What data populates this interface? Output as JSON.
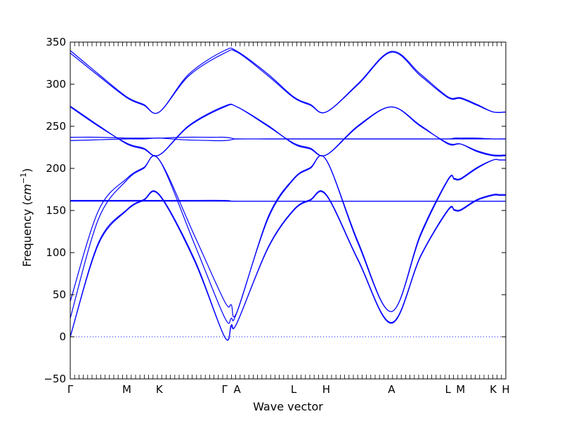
{
  "chart_data": {
    "type": "line",
    "xlabel": "Wave vector",
    "ylabel": {
      "text": "Frequency (",
      "unit_main": "cm",
      "unit_exp": "−1",
      "close": ")"
    },
    "ylim": [
      -50,
      350
    ],
    "yticks": [
      -50,
      0,
      50,
      100,
      150,
      200,
      250,
      300,
      350
    ],
    "ytick_labels": [
      "−50",
      "0",
      "50",
      "100",
      "150",
      "200",
      "250",
      "300",
      "350"
    ],
    "high_symmetry_points": [
      {
        "label": "Γ",
        "x": 0.0
      },
      {
        "label": "M",
        "x": 1.0
      },
      {
        "label": "K",
        "x": 1.577
      },
      {
        "label": "Γ",
        "x": 2.732
      },
      {
        "label": "A",
        "x": 2.955
      },
      {
        "label": "L",
        "x": 3.955
      },
      {
        "label": "H",
        "x": 4.532
      },
      {
        "label": "A",
        "x": 5.687
      },
      {
        "label": "L",
        "x": 6.687
      },
      {
        "label": "M",
        "x": 6.91
      },
      {
        "label": "K",
        "x": 7.487
      },
      {
        "label": "H",
        "x": 7.71
      }
    ],
    "zero_line": true,
    "line_color": "#0000ff",
    "zero_line_color": "#0000ff",
    "series": [
      {
        "x": [
          0,
          0.5,
          1.0,
          1.3,
          1.577,
          2.2,
          2.732,
          2.85,
          2.955,
          3.5,
          3.955,
          4.25,
          4.532,
          5.1,
          5.687,
          6.2,
          6.687,
          6.8,
          6.91,
          7.2,
          7.487,
          7.6,
          7.71
        ],
        "y": [
          0,
          110,
          150,
          162,
          168,
          90,
          0,
          12,
          17,
          105,
          150,
          162,
          168,
          90,
          16,
          95,
          150,
          150,
          150,
          162,
          168,
          168,
          168
        ]
      },
      {
        "x": [
          0,
          0.5,
          1.0,
          1.3,
          1.577,
          2.2,
          2.732,
          2.85,
          2.955,
          3.5,
          3.955,
          4.25,
          4.532,
          5.1,
          5.687,
          6.2,
          6.687,
          6.8,
          6.91,
          7.2,
          7.487,
          7.6,
          7.71
        ],
        "y": [
          0,
          112,
          151,
          163,
          169,
          92,
          0,
          14,
          17,
          106,
          151,
          163,
          169,
          91,
          17,
          96,
          151,
          151,
          151,
          163,
          169,
          169,
          169
        ]
      },
      {
        "x": [
          0,
          0.5,
          1.0,
          1.3,
          1.577,
          2.2,
          2.732,
          2.85,
          2.955,
          3.5,
          3.955,
          4.25,
          4.532,
          5.1,
          5.687,
          6.2,
          6.687,
          6.8,
          6.91,
          7.2,
          7.487,
          7.6,
          7.71
        ],
        "y": [
          22,
          140,
          186,
          200,
          210,
          110,
          23,
          22,
          30,
          140,
          187,
          200,
          210,
          110,
          30,
          120,
          186,
          187,
          187,
          200,
          210,
          210,
          210
        ]
      },
      {
        "x": [
          0,
          0.5,
          1.0,
          1.3,
          1.577,
          2.2,
          2.732,
          2.85,
          2.955,
          3.5,
          3.955,
          4.25,
          4.532,
          5.1,
          5.687,
          6.2,
          6.687,
          6.8,
          6.91,
          7.2,
          7.487,
          7.6,
          7.71
        ],
        "y": [
          42,
          150,
          188,
          201,
          210,
          120,
          42,
          38,
          30,
          142,
          188,
          201,
          210,
          112,
          30,
          122,
          187,
          188,
          188,
          201,
          210,
          210,
          210
        ]
      },
      {
        "x": [
          0,
          0.5,
          1.0,
          1.577,
          2.0,
          2.732,
          2.955,
          3.955,
          4.532,
          5.687,
          6.687,
          6.91,
          7.487,
          7.71
        ],
        "y": [
          161,
          161,
          161,
          161,
          161,
          161,
          161,
          161,
          161,
          161,
          161,
          161,
          161,
          161
        ]
      },
      {
        "x": [
          0,
          0.5,
          1.0,
          1.577,
          2.0,
          2.732,
          2.955,
          3.955,
          4.532,
          5.687,
          6.687,
          6.91,
          7.487,
          7.71
        ],
        "y": [
          162,
          162,
          162,
          162,
          162,
          162,
          161,
          161,
          161,
          161,
          161,
          161,
          161,
          161
        ]
      },
      {
        "x": [
          0,
          0.5,
          1.0,
          1.3,
          1.577,
          2.0,
          2.5,
          2.732,
          2.85,
          2.955,
          3.5,
          3.955,
          4.25,
          4.532,
          5.1,
          5.687,
          6.2,
          6.687,
          6.8,
          6.91,
          7.2,
          7.487,
          7.6,
          7.71
        ],
        "y": [
          237,
          237,
          236,
          236,
          236,
          237,
          237,
          237,
          236,
          235,
          235,
          235,
          235,
          235,
          235,
          235,
          235,
          235,
          236,
          236,
          236,
          235,
          235,
          235
        ]
      },
      {
        "x": [
          0,
          0.5,
          1.0,
          1.3,
          1.577,
          2.0,
          2.5,
          2.732,
          2.85,
          2.955,
          3.5,
          3.955,
          4.25,
          4.532,
          5.1,
          5.687,
          6.2,
          6.687,
          6.8,
          6.91,
          7.2,
          7.487,
          7.6,
          7.71
        ],
        "y": [
          233,
          234,
          235,
          235,
          236,
          234,
          233,
          233,
          234,
          235,
          235,
          235,
          235,
          235,
          235,
          235,
          235,
          235,
          235,
          235,
          235,
          235,
          235,
          235
        ]
      },
      {
        "x": [
          0,
          0.5,
          1.0,
          1.3,
          1.577,
          2.1,
          2.732,
          2.955,
          3.5,
          3.955,
          4.25,
          4.532,
          5.1,
          5.687,
          6.2,
          6.687,
          6.91,
          7.2,
          7.487,
          7.71
        ],
        "y": [
          273,
          250,
          230,
          224,
          216,
          250,
          273,
          273,
          250,
          230,
          224,
          216,
          250,
          273,
          250,
          230,
          229,
          220,
          215,
          215
        ]
      },
      {
        "x": [
          0,
          0.5,
          1.0,
          1.3,
          1.577,
          2.1,
          2.732,
          2.955,
          3.5,
          3.955,
          4.25,
          4.532,
          5.1,
          5.687,
          6.2,
          6.687,
          6.91,
          7.2,
          7.487,
          7.71
        ],
        "y": [
          274,
          251,
          229,
          223,
          216,
          251,
          274,
          273,
          251,
          229,
          223,
          216,
          251,
          273,
          251,
          229,
          229,
          221,
          216,
          216
        ]
      },
      {
        "x": [
          0,
          0.5,
          1.0,
          1.3,
          1.577,
          2.1,
          2.732,
          2.955,
          3.5,
          3.955,
          4.25,
          4.532,
          5.1,
          5.687,
          6.2,
          6.687,
          6.91,
          7.2,
          7.487,
          7.71
        ],
        "y": [
          337,
          310,
          284,
          275,
          267,
          310,
          337,
          338,
          310,
          284,
          275,
          267,
          300,
          338,
          310,
          284,
          283,
          275,
          267,
          267
        ]
      },
      {
        "x": [
          0,
          0.5,
          1.0,
          1.3,
          1.577,
          2.1,
          2.732,
          2.955,
          3.5,
          3.955,
          4.25,
          4.532,
          5.1,
          5.687,
          6.2,
          6.687,
          6.91,
          7.2,
          7.487,
          7.71
        ],
        "y": [
          340,
          312,
          285,
          276,
          267,
          312,
          340,
          339,
          312,
          285,
          276,
          267,
          301,
          339,
          312,
          285,
          284,
          276,
          267,
          267
        ]
      }
    ]
  }
}
